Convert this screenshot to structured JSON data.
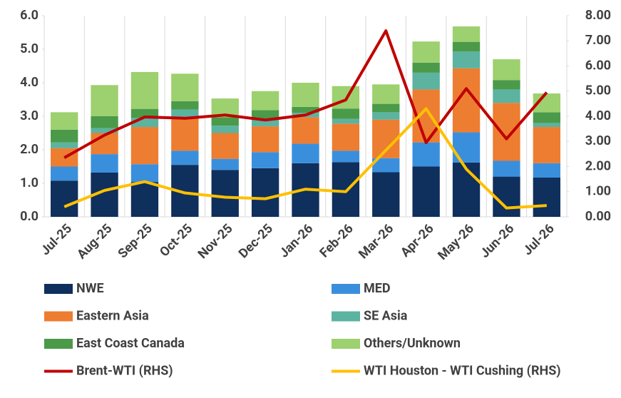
{
  "chart_data": {
    "type": "bar",
    "categories": [
      "Jul-25",
      "Aug-25",
      "Sep-25",
      "Oct-25",
      "Nov-25",
      "Dec-25",
      "Jan-26",
      "Feb-26",
      "Mar-26",
      "Apr-26",
      "May-26",
      "Jun-26",
      "Jul-26"
    ],
    "series": [
      {
        "name": "NWE",
        "color": "#0f2f5c",
        "values": [
          1.08,
          1.32,
          1.04,
          1.55,
          1.4,
          1.45,
          1.6,
          1.63,
          1.33,
          1.5,
          1.62,
          1.2,
          1.17
        ]
      },
      {
        "name": "MED",
        "color": "#3a8fdd",
        "values": [
          0.42,
          0.55,
          0.53,
          0.42,
          0.33,
          0.48,
          0.58,
          0.34,
          0.42,
          0.72,
          0.9,
          0.47,
          0.43
        ]
      },
      {
        "name": "Eastern Asia",
        "color": "#ed7d31",
        "values": [
          0.55,
          0.63,
          1.11,
          0.98,
          0.77,
          0.77,
          0.79,
          0.81,
          1.15,
          1.58,
          1.91,
          1.73,
          1.08
        ]
      },
      {
        "name": "SE Asia",
        "color": "#5bb3a0",
        "values": [
          0.17,
          0.15,
          0.27,
          0.25,
          0.22,
          0.22,
          0.13,
          0.14,
          0.22,
          0.5,
          0.5,
          0.4,
          0.12
        ]
      },
      {
        "name": "East Coast Canada",
        "color": "#4a9a4a",
        "values": [
          0.38,
          0.35,
          0.27,
          0.25,
          0.25,
          0.26,
          0.18,
          0.31,
          0.25,
          0.3,
          0.29,
          0.28,
          0.32
        ]
      },
      {
        "name": "Others/Unknown",
        "color": "#9dd06e",
        "values": [
          0.52,
          0.93,
          1.1,
          0.82,
          0.56,
          0.57,
          0.72,
          0.67,
          0.58,
          0.63,
          0.46,
          0.62,
          0.56
        ]
      },
      {
        "name": "Brent-WTI (RHS)",
        "color": "#c00000",
        "type": "line",
        "axis": "y2",
        "values": [
          2.35,
          3.25,
          3.97,
          3.92,
          4.05,
          3.85,
          4.05,
          4.65,
          7.4,
          2.95,
          5.1,
          3.1,
          4.95
        ]
      },
      {
        "name": "WTI Houston - WTI Cushing (RHS)",
        "color": "#ffc000",
        "type": "line",
        "axis": "y2",
        "values": [
          0.4,
          1.05,
          1.4,
          0.95,
          0.78,
          0.72,
          1.1,
          1.0,
          2.65,
          4.3,
          1.9,
          0.35,
          0.45
        ]
      }
    ],
    "ylim": [
      0,
      6
    ],
    "yticks": [
      {
        "value": 0,
        "label": "0.0"
      },
      {
        "value": 1,
        "label": "1.0"
      },
      {
        "value": 2,
        "label": "2.0"
      },
      {
        "value": 3,
        "label": "3.0"
      },
      {
        "value": 4,
        "label": "4.0"
      },
      {
        "value": 5,
        "label": "5.0"
      },
      {
        "value": 6,
        "label": "6.0"
      }
    ],
    "y2lim": [
      0,
      8
    ],
    "y2ticks": [
      {
        "value": 0,
        "label": "0.00"
      },
      {
        "value": 1,
        "label": "1.00"
      },
      {
        "value": 2,
        "label": "2.00"
      },
      {
        "value": 3,
        "label": "3.00"
      },
      {
        "value": 4,
        "label": "4.00"
      },
      {
        "value": 5,
        "label": "5.00"
      },
      {
        "value": 6,
        "label": "6.00"
      },
      {
        "value": 7,
        "label": "7.00"
      },
      {
        "value": 8,
        "label": "8.00"
      }
    ],
    "stacked": true
  }
}
